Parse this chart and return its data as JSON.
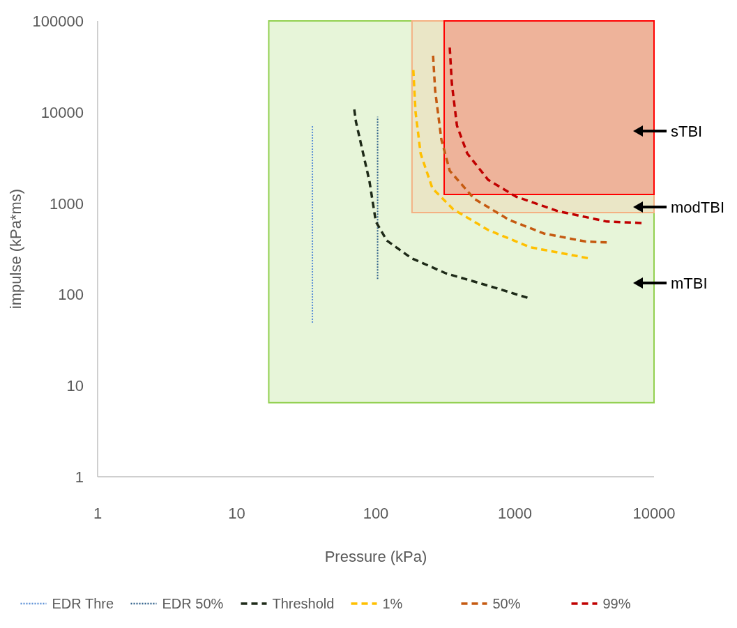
{
  "chart_data": {
    "type": "line",
    "xlabel": "Pressure (kPa)",
    "ylabel": "impulse (kPa*ms)",
    "log": "xy",
    "xlim": [
      1,
      10000
    ],
    "ylim": [
      1,
      100000
    ],
    "xticks": [
      1,
      10,
      100,
      1000,
      10000
    ],
    "yticks": [
      1,
      10,
      100,
      1000,
      10000,
      100000
    ],
    "grid": false,
    "legend": "bottom",
    "series": [
      {
        "type": "area",
        "color": "#92d050",
        "x": [
          17,
          17,
          10000,
          10000
        ],
        "values": [
          6.5,
          100000,
          100000,
          6.5
        ]
      },
      {
        "type": "area",
        "color": "#f4b183",
        "x": [
          182,
          182,
          10000,
          10000
        ],
        "values": [
          790,
          100000,
          100000,
          790
        ]
      },
      {
        "type": "area",
        "color": "#ff0000",
        "x": [
          310,
          310,
          10000,
          10000
        ],
        "values": [
          1250,
          100000,
          100000,
          1250
        ]
      },
      {
        "name": "EDR Thre",
        "color": "#5b8fd6",
        "line_style": "dotted",
        "x": [
          35,
          35
        ],
        "values": [
          49,
          7100
        ]
      },
      {
        "name": "EDR 50%",
        "color": "#2e5f8a",
        "line_style": "dotted",
        "x": [
          103,
          103
        ],
        "values": [
          148,
          8900
        ]
      },
      {
        "name": "Threshold",
        "color": "#1e2a18",
        "line_style": "dashed",
        "x": [
          70,
          72,
          80,
          90,
          100,
          120,
          180,
          320,
          640,
          1230
        ],
        "values": [
          10700,
          7800,
          3850,
          1740,
          630,
          390,
          250,
          170,
          125,
          92
        ]
      },
      {
        "name": "1%",
        "color": "#ffc000",
        "line_style": "dashed",
        "x": [
          186,
          193,
          210,
          255,
          360,
          640,
          1280,
          3340
        ],
        "values": [
          29000,
          10000,
          3500,
          1460,
          860,
          510,
          330,
          250
        ]
      },
      {
        "name": "50%",
        "color": "#c55a11",
        "line_style": "dashed",
        "x": [
          258,
          267,
          296,
          340,
          510,
          905,
          1610,
          3230,
          4570
        ],
        "values": [
          41500,
          17200,
          5000,
          2270,
          1120,
          660,
          466,
          380,
          372
        ]
      },
      {
        "name": "99%",
        "color": "#c00000",
        "line_style": "dashed",
        "x": [
          340,
          352,
          383,
          454,
          641,
          1020,
          2030,
          4570,
          8130
        ],
        "values": [
          51000,
          20500,
          7100,
          3520,
          1810,
          1180,
          820,
          630,
          607
        ]
      }
    ],
    "annotations": [
      "sTBI",
      "modTBI",
      "mTBI"
    ]
  }
}
